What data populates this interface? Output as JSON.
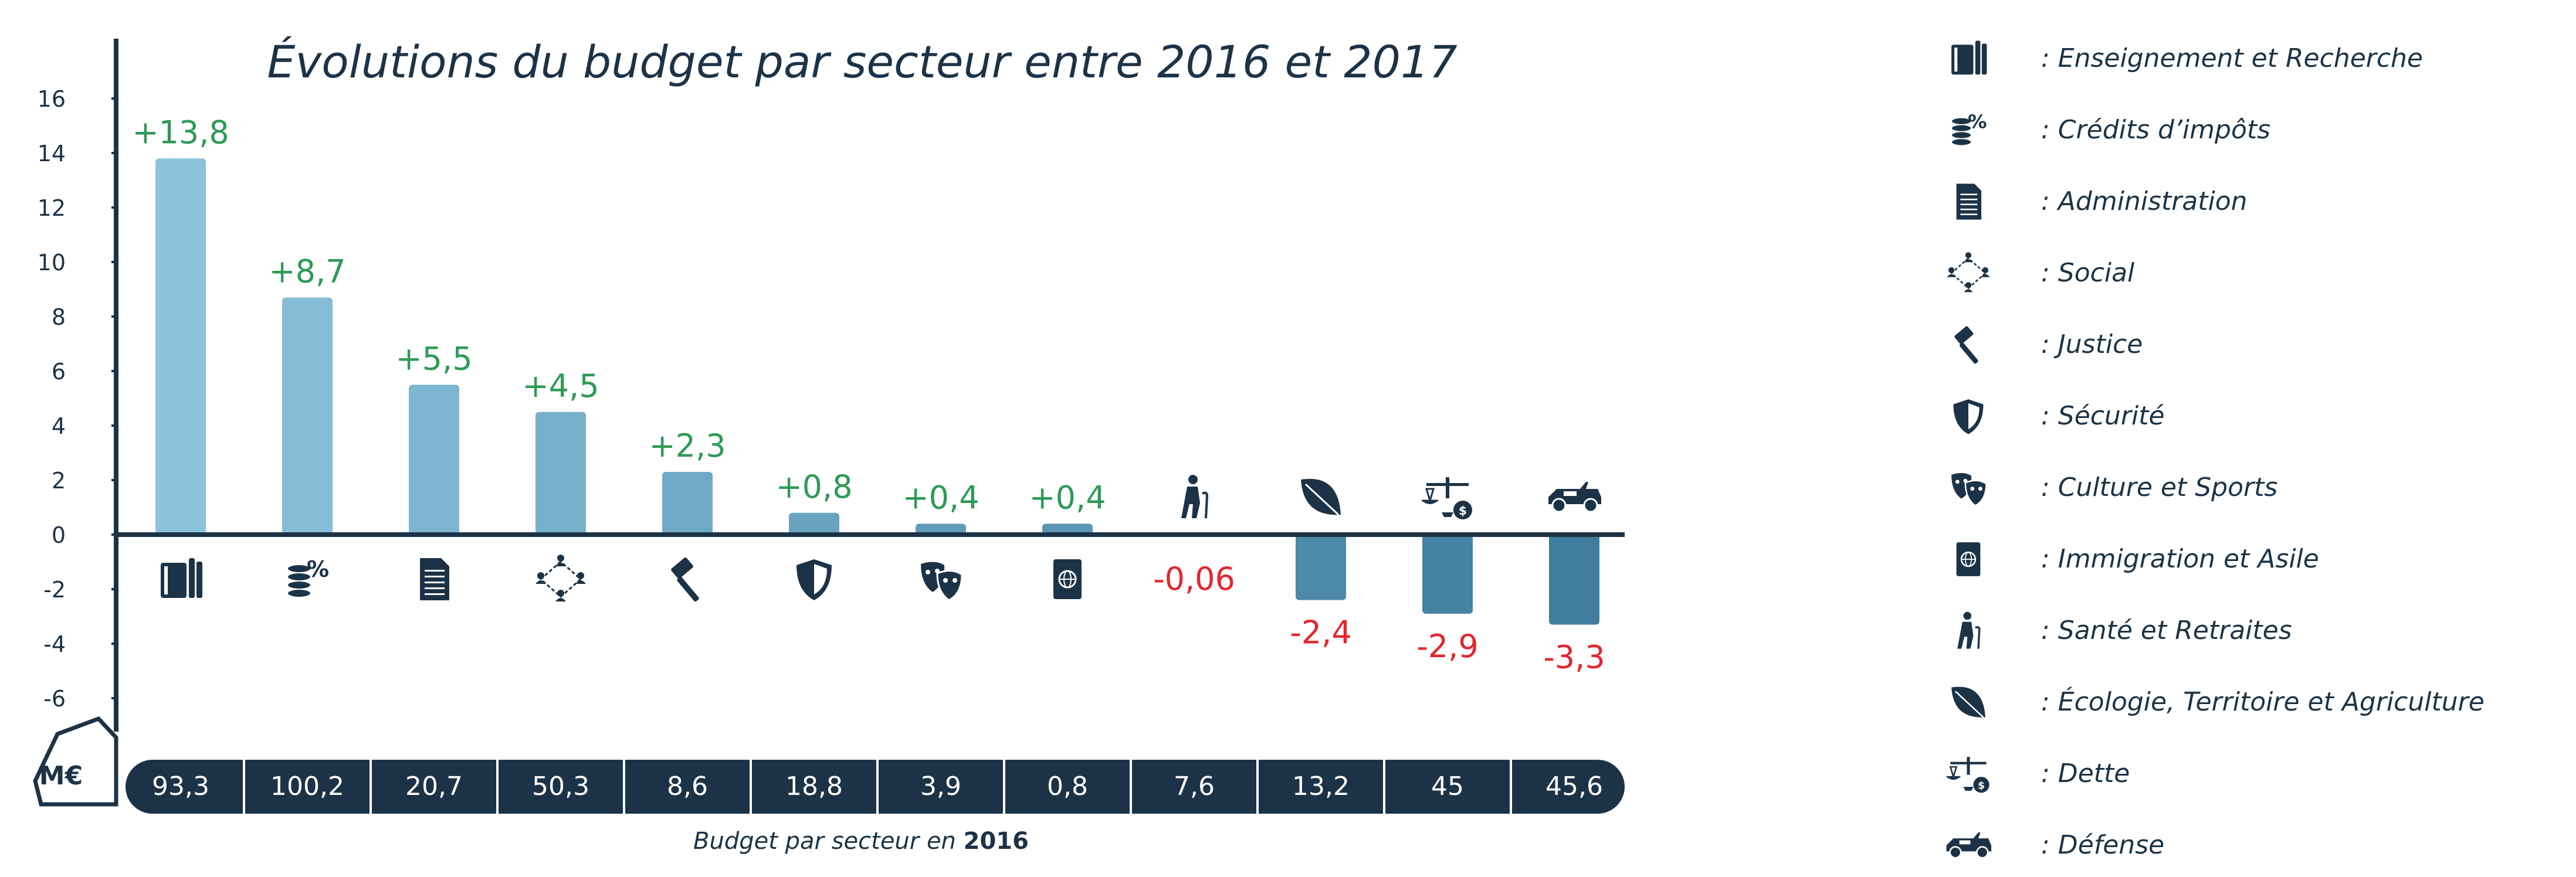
{
  "unit_badge": "M€",
  "caption": {
    "prefix": "Budget par secteur en ",
    "year": "2016"
  },
  "colors": {
    "dark": "#1c3347",
    "positive": "#2e9a57",
    "negative": "#e3262e",
    "bar_light": "#8cc3dc",
    "bar_dark": "#3f7c9e"
  },
  "chart_data": {
    "type": "bar",
    "title": "Évolutions du budget par secteur entre 2016 et 2017",
    "ylim": [
      -7,
      16
    ],
    "yticks": [
      16,
      14,
      12,
      10,
      8,
      6,
      4,
      2,
      0,
      -2,
      -4,
      -6
    ],
    "grid": false,
    "legend_position": "right",
    "categories": [
      "Enseignement et Recherche",
      "Crédits d'impôts",
      "Administration",
      "Social",
      "Justice",
      "Sécurité",
      "Culture et Sports",
      "Immigration et Asile",
      "Santé et Retraites",
      "Écologie, Territoire et Agriculture",
      "Dette",
      "Défense"
    ],
    "values": [
      13.8,
      8.7,
      5.5,
      4.5,
      2.3,
      0.8,
      0.4,
      0.4,
      -0.06,
      -2.4,
      -2.9,
      -3.3
    ],
    "value_labels": [
      "+13,8",
      "+8,7",
      "+5,5",
      "+4,5",
      "+2,3",
      "+0,8",
      "+0,4",
      "+0,4",
      "-0,06",
      "-2,4",
      "-2,9",
      "-3,3"
    ],
    "budget_2016": [
      "93,3",
      "100,2",
      "20,7",
      "50,3",
      "8,6",
      "18,8",
      "3,9",
      "0,8",
      "7,6",
      "13,2",
      "45",
      "45,6"
    ],
    "icons": [
      "books-icon",
      "coins-percent-icon",
      "document-icon",
      "network-people-icon",
      "gavel-icon",
      "shield-icon",
      "theater-masks-icon",
      "passport-icon",
      "elderly-person-icon",
      "leaf-icon",
      "scales-icon",
      "military-jeep-icon"
    ]
  },
  "legend": [
    {
      "icon": "books-icon",
      "label": ": Enseignement et Recherche"
    },
    {
      "icon": "coins-percent-icon",
      "label": ": Crédits d’impôts"
    },
    {
      "icon": "document-icon",
      "label": ": Administration"
    },
    {
      "icon": "network-people-icon",
      "label": ": Social"
    },
    {
      "icon": "gavel-icon",
      "label": ": Justice"
    },
    {
      "icon": "shield-icon",
      "label": ": Sécurité"
    },
    {
      "icon": "theater-masks-icon",
      "label": ": Culture et Sports"
    },
    {
      "icon": "passport-icon",
      "label": ": Immigration et Asile"
    },
    {
      "icon": "elderly-person-icon",
      "label": ": Santé et Retraites"
    },
    {
      "icon": "leaf-icon",
      "label": ": Écologie, Territoire et Agriculture"
    },
    {
      "icon": "scales-icon",
      "label": ": Dette"
    },
    {
      "icon": "military-jeep-icon",
      "label": ": Défense"
    }
  ]
}
